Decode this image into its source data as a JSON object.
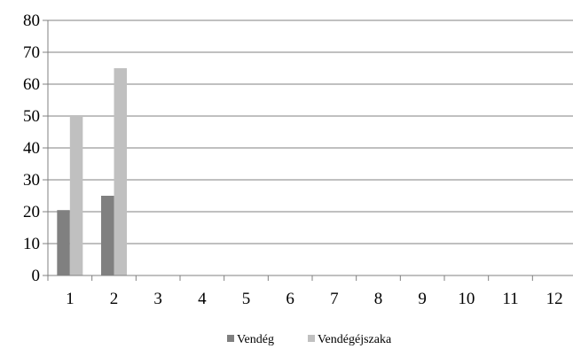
{
  "chart_data": {
    "type": "bar",
    "title": "",
    "xlabel": "",
    "ylabel": "",
    "categories": [
      "1",
      "2",
      "3",
      "4",
      "5",
      "6",
      "7",
      "8",
      "9",
      "10",
      "11",
      "12"
    ],
    "series": [
      {
        "name": "Vendég",
        "color": "#808080",
        "values": [
          20.5,
          25,
          0,
          0,
          0,
          0,
          0,
          0,
          0,
          0,
          0,
          0
        ]
      },
      {
        "name": "Vendégéjszaka",
        "color": "#c0c0c0",
        "values": [
          50,
          65,
          0,
          0,
          0,
          0,
          0,
          0,
          0,
          0,
          0,
          0
        ]
      }
    ],
    "ylim": [
      0,
      80
    ],
    "yticks": [
      0,
      10,
      20,
      30,
      40,
      50,
      60,
      70,
      80
    ],
    "grid": true,
    "legend_position": "bottom"
  }
}
